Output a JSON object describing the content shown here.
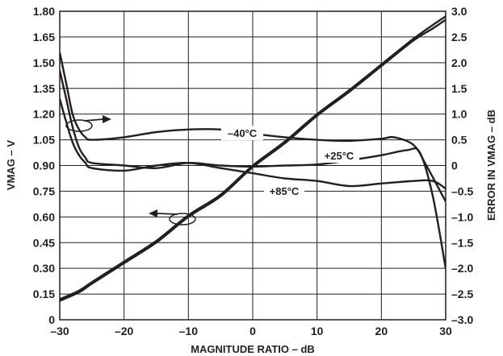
{
  "chart_data": {
    "type": "line",
    "xlabel": "MAGNITUDE RATIO – dB",
    "ylabel": "VMAG – V",
    "y2label": "ERROR IN VMAG – dB",
    "xlim": [
      -30,
      30
    ],
    "ylim": [
      0,
      1.8
    ],
    "y2lim": [
      -3.0,
      3.0
    ],
    "grid": true,
    "x_ticks": [
      "–30",
      "–20",
      "–10",
      "0",
      "10",
      "20",
      "30"
    ],
    "y_ticks": [
      "0",
      "0.15",
      "0.30",
      "0.45",
      "0.60",
      "0.75",
      "0.90",
      "1.05",
      "1.20",
      "1.35",
      "1.50",
      "1.65",
      "1.80"
    ],
    "y2_ticks": [
      "–3.0",
      "–2.5",
      "–2.0",
      "–1.5",
      "–1.0",
      "–0.5",
      "0",
      "0.5",
      "1.0",
      "1.5",
      "2.0",
      "2.5",
      "3.0"
    ],
    "series": [
      {
        "axis": "left",
        "x": [
          -30,
          -27,
          -25,
          -20,
          -15,
          -10,
          -5,
          0,
          5,
          10,
          15,
          20,
          25,
          28,
          30
        ],
        "y": [
          0.11,
          0.16,
          0.21,
          0.33,
          0.45,
          0.6,
          0.72,
          0.89,
          1.03,
          1.19,
          1.33,
          1.48,
          1.63,
          1.7,
          1.75
        ]
      },
      {
        "axis": "left",
        "x": [
          -30,
          -27,
          -25,
          -20,
          -15,
          -10,
          -5,
          0,
          5,
          10,
          15,
          20,
          25,
          28,
          30
        ],
        "y": [
          0.12,
          0.17,
          0.22,
          0.34,
          0.46,
          0.61,
          0.73,
          0.9,
          1.04,
          1.2,
          1.34,
          1.49,
          1.64,
          1.72,
          1.77
        ]
      },
      {
        "name": "–40°C",
        "axis": "right",
        "x": [
          -30,
          -29,
          -28,
          -27,
          -26,
          -25,
          -20,
          -15,
          -10,
          -5,
          0,
          5,
          10,
          15,
          20,
          22,
          25,
          27,
          30
        ],
        "y": [
          2.2,
          1.6,
          1.0,
          0.7,
          0.55,
          0.5,
          0.55,
          0.65,
          0.7,
          0.7,
          0.62,
          0.55,
          0.5,
          0.48,
          0.52,
          0.55,
          0.4,
          0.0,
          -0.7
        ]
      },
      {
        "name": "+25°C",
        "axis": "right",
        "x": [
          -30,
          -29,
          -28,
          -27,
          -26,
          -25,
          -20,
          -15,
          -10,
          -5,
          0,
          5,
          10,
          15,
          20,
          24,
          26,
          28,
          30
        ],
        "y": [
          1.85,
          1.3,
          0.75,
          0.35,
          0.15,
          0.05,
          0.0,
          -0.05,
          0.05,
          0.0,
          -0.02,
          0.0,
          0.02,
          0.1,
          0.2,
          0.3,
          0.25,
          -0.6,
          -2.0
        ]
      },
      {
        "name": "+85°C",
        "axis": "right",
        "x": [
          -30,
          -29,
          -28,
          -27,
          -26,
          -25,
          -20,
          -15,
          -10,
          -5,
          0,
          5,
          10,
          15,
          20,
          25,
          28,
          30
        ],
        "y": [
          1.3,
          0.85,
          0.45,
          0.2,
          0.05,
          -0.05,
          -0.1,
          0.0,
          0.05,
          -0.05,
          -0.15,
          -0.25,
          -0.3,
          -0.4,
          -0.35,
          -0.3,
          -0.3,
          -0.45
        ]
      }
    ],
    "annotations": [
      "–40°C",
      "+25°C",
      "+85°C"
    ]
  }
}
